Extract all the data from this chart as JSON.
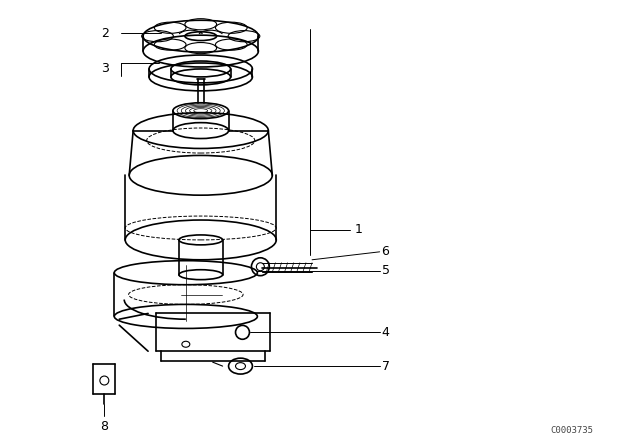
{
  "background_color": "#ffffff",
  "line_color": "#000000",
  "watermark": "C0003735",
  "fig_w": 6.4,
  "fig_h": 4.48,
  "dpi": 100
}
